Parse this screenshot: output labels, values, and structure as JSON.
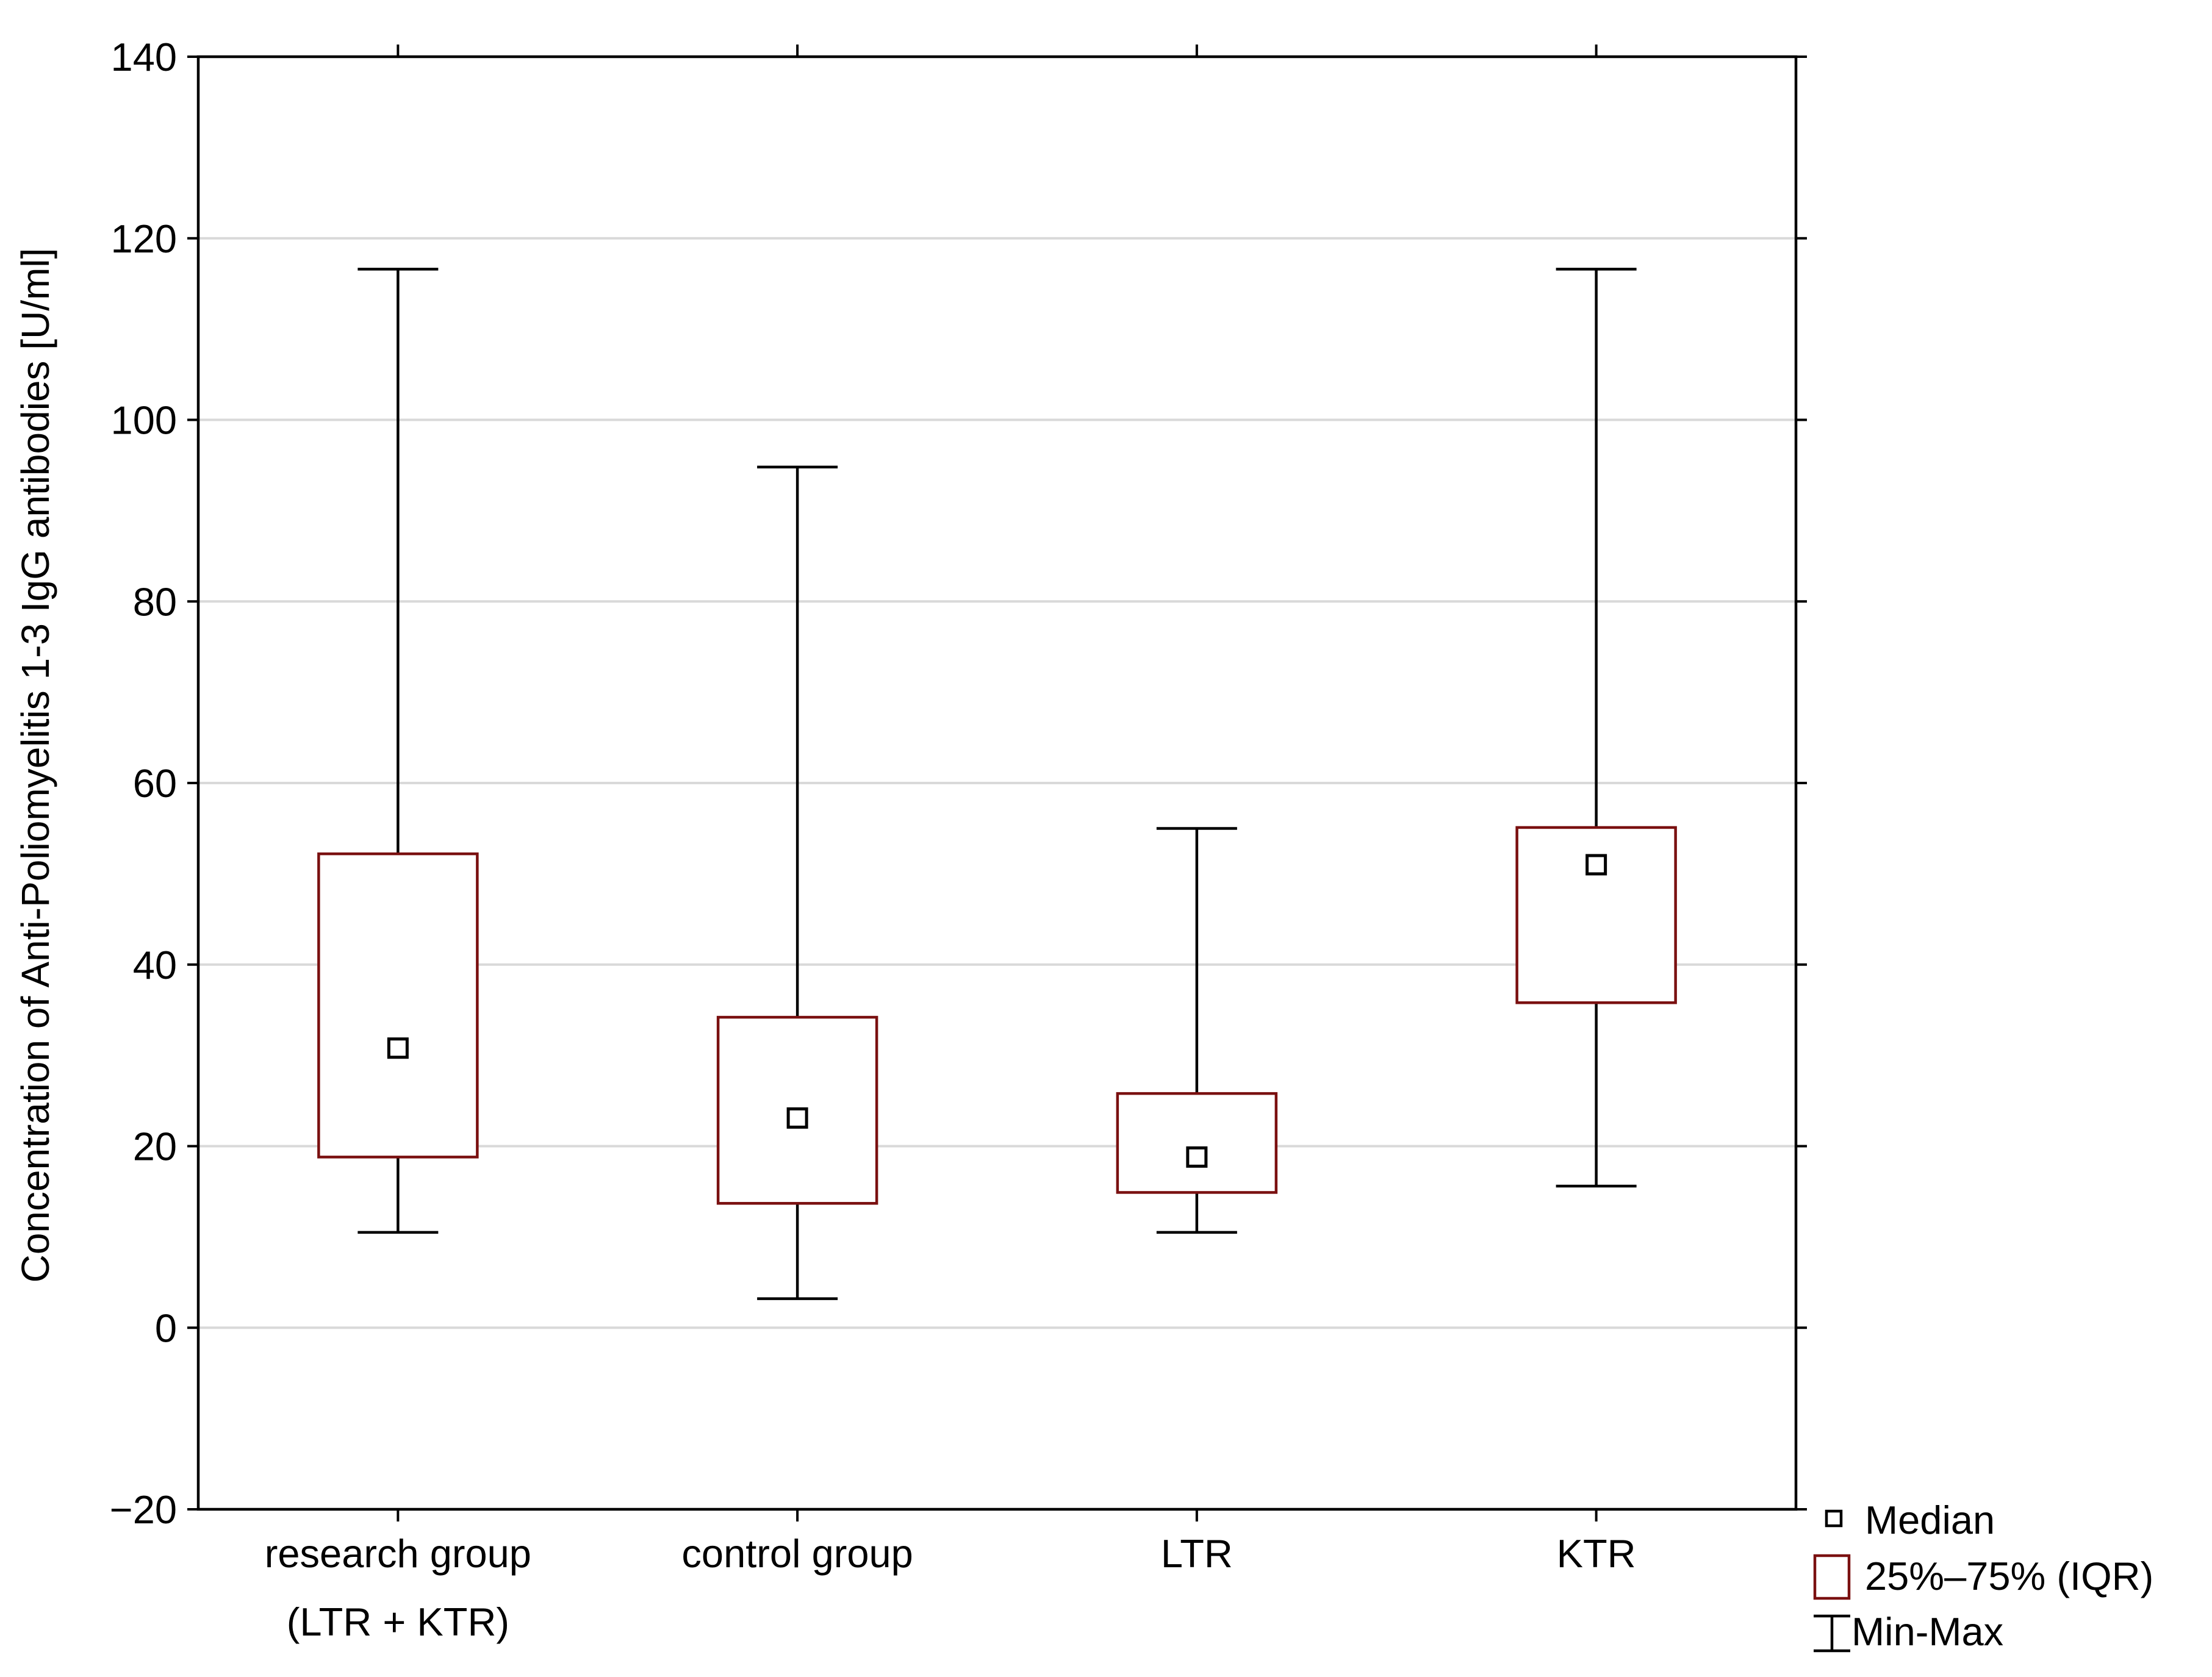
{
  "chart_data": {
    "type": "box",
    "title": "",
    "xlabel": "",
    "ylabel": "Concentration of Anti-Poliomyelitis 1-3 IgG antibodies [U/ml]",
    "ylim": [
      -20,
      140
    ],
    "yticks": [
      -20,
      0,
      20,
      40,
      60,
      80,
      100,
      120,
      140
    ],
    "grid": true,
    "legend_position": "bottom-right",
    "categories": [
      [
        "research group",
        "(LTR + KTR)"
      ],
      [
        "control group"
      ],
      [
        "LTR"
      ],
      [
        "KTR"
      ]
    ],
    "series": [
      {
        "name": "research group (LTR + KTR)",
        "min": 10.5,
        "q1": 18.8,
        "median": 30.8,
        "q3": 52.2,
        "max": 116.6
      },
      {
        "name": "control group",
        "min": 3.2,
        "q1": 13.7,
        "median": 23.1,
        "q3": 34.2,
        "max": 94.8
      },
      {
        "name": "LTR",
        "min": 10.5,
        "q1": 14.9,
        "median": 18.8,
        "q3": 25.8,
        "max": 55.0
      },
      {
        "name": "KTR",
        "min": 15.6,
        "q1": 35.8,
        "median": 51.0,
        "q3": 55.1,
        "max": 116.6
      }
    ],
    "legend": [
      {
        "symbol": "median",
        "label": "Median"
      },
      {
        "symbol": "box",
        "label": "25%–75% (IQR)"
      },
      {
        "symbol": "whisker",
        "label": "Min-Max"
      }
    ],
    "colors": {
      "box": "#7a1010",
      "whisker": "#000000",
      "median": "#000000",
      "grid": "#d9d9d9",
      "frame": "#000000"
    }
  }
}
